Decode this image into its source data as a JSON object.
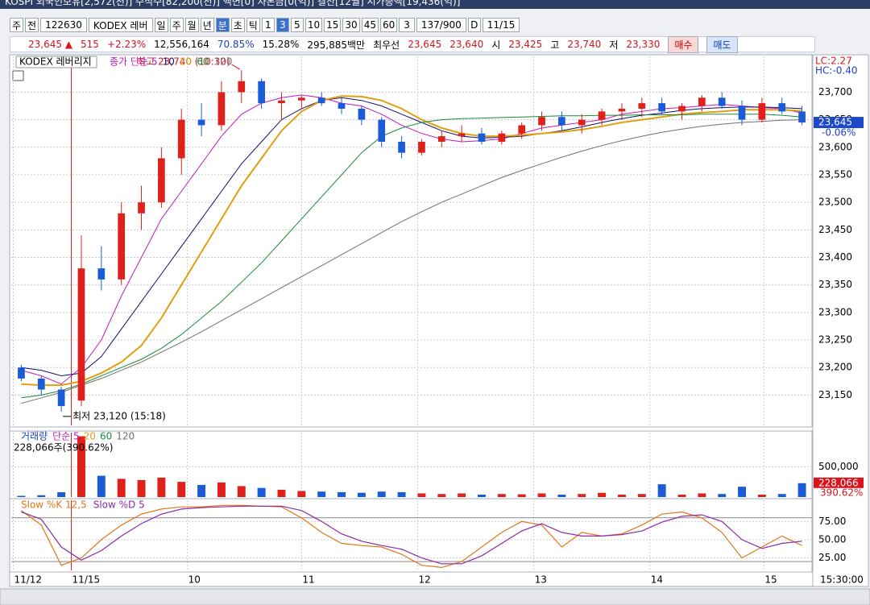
{
  "header": {
    "title": "KOSPI 외국인보유[2,572(천)] 수식수[82,200(천)] 액면[0] 자본금[0(억)] 결산[12월] 시가총액[19,436(억)]"
  },
  "toolbar": {
    "items": [
      {
        "text": "주"
      },
      {
        "text": "전"
      },
      {
        "text": "122630",
        "wide": true
      },
      {
        "text": "KODEX 레버",
        "wide": true
      },
      {
        "text": "일"
      },
      {
        "text": "주"
      },
      {
        "text": "월"
      },
      {
        "text": "년"
      },
      {
        "text": "분",
        "active": true
      },
      {
        "text": "초"
      },
      {
        "text": "틱"
      },
      {
        "text": "1"
      },
      {
        "text": "3",
        "active": true
      },
      {
        "text": "5"
      },
      {
        "text": "10"
      },
      {
        "text": "15"
      },
      {
        "text": "30"
      },
      {
        "text": "45"
      },
      {
        "text": "60"
      },
      {
        "text": "3",
        "wide": true
      },
      {
        "text": "137/900",
        "wide": true
      },
      {
        "text": "D"
      },
      {
        "text": "11/15",
        "wide": true
      }
    ]
  },
  "quote": {
    "items": [
      {
        "text": "23,645 ▲",
        "color": "#d8141c"
      },
      {
        "text": "515",
        "color": "#d8141c"
      },
      {
        "text": "+2.23%",
        "color": "#d8141c"
      },
      {
        "text": "12,556,164",
        "color": "#000000"
      },
      {
        "text": "70.85%",
        "color": "#1d3fc4"
      },
      {
        "text": "15.28%",
        "color": "#000000"
      },
      {
        "text": "295,885백만",
        "color": "#000000"
      },
      {
        "text": "최우선",
        "color": "#000000"
      },
      {
        "text": "23,645",
        "color": "#d8141c"
      },
      {
        "text": "23,640",
        "color": "#d8141c"
      },
      {
        "text": "시",
        "color": "#000000"
      },
      {
        "text": "23,425",
        "color": "#d8141c"
      },
      {
        "text": "고",
        "color": "#000000"
      },
      {
        "text": "23,740",
        "color": "#d8141c"
      },
      {
        "text": "저",
        "color": "#000000"
      },
      {
        "text": "23,330",
        "color": "#d8141c"
      }
    ],
    "buy": "매수",
    "sell": "매도"
  },
  "chart_data": [
    {
      "type": "candlestick",
      "title": "KODEX 레버리지",
      "ma_label": "종가 단순",
      "lc": "LC:2.27",
      "hc": "HC:-0.40",
      "xlim": [
        -0.5,
        39.5
      ],
      "ylim": [
        23095,
        23765
      ],
      "yticks": [
        {
          "value": 23150,
          "label": "23,150"
        },
        {
          "value": 23200,
          "label": "23,200"
        },
        {
          "value": 23250,
          "label": "23,250"
        },
        {
          "value": 23300,
          "label": "23,300"
        },
        {
          "value": 23350,
          "label": "23,350"
        },
        {
          "value": 23400,
          "label": "23,400"
        },
        {
          "value": 23450,
          "label": "23,450"
        },
        {
          "value": 23500,
          "label": "23,500"
        },
        {
          "value": 23550,
          "label": "23,550"
        },
        {
          "value": 23600,
          "label": "23,600"
        },
        {
          "value": 23650,
          "label": "23,650"
        },
        {
          "value": 23700,
          "label": "23,700"
        }
      ],
      "up_color": "#e0201b",
      "down_color": "#1a5bd8",
      "open": [
        23200,
        23180,
        23160,
        23140,
        23380,
        23360,
        23480,
        23500,
        23580,
        23650,
        23640,
        23700,
        23720,
        23680,
        23685,
        23690,
        23680,
        23670,
        23650,
        23610,
        23590,
        23610,
        23620,
        23625,
        23610,
        23625,
        23640,
        23655,
        23640,
        23650,
        23665,
        23670,
        23680,
        23665,
        23675,
        23690,
        23675,
        23650,
        23680,
        23665
      ],
      "high": [
        23205,
        23185,
        23165,
        23440,
        23420,
        23500,
        23530,
        23600,
        23670,
        23680,
        23720,
        23740,
        23725,
        23700,
        23695,
        23700,
        23690,
        23675,
        23655,
        23620,
        23615,
        23630,
        23640,
        23635,
        23630,
        23645,
        23665,
        23665,
        23660,
        23670,
        23680,
        23690,
        23690,
        23680,
        23695,
        23700,
        23685,
        23690,
        23690,
        23675
      ],
      "low": [
        23175,
        23150,
        23120,
        23130,
        23340,
        23350,
        23450,
        23490,
        23550,
        23620,
        23630,
        23680,
        23670,
        23650,
        23670,
        23675,
        23660,
        23640,
        23600,
        23580,
        23585,
        23600,
        23610,
        23605,
        23605,
        23615,
        23630,
        23630,
        23625,
        23640,
        23650,
        23655,
        23660,
        23650,
        23665,
        23670,
        23640,
        23645,
        23660,
        23640
      ],
      "close": [
        23180,
        23160,
        23130,
        23380,
        23360,
        23480,
        23500,
        23580,
        23650,
        23640,
        23700,
        23720,
        23680,
        23685,
        23690,
        23680,
        23670,
        23650,
        23610,
        23590,
        23610,
        23620,
        23625,
        23610,
        23625,
        23640,
        23655,
        23640,
        23650,
        23665,
        23670,
        23680,
        23665,
        23675,
        23690,
        23675,
        23650,
        23680,
        23665,
        23645
      ],
      "series": [
        {
          "name": "5",
          "color": "#c01cc0",
          "values": [
            23195,
            23185,
            23170,
            23200,
            23250,
            23330,
            23400,
            23470,
            23520,
            23570,
            23620,
            23660,
            23680,
            23690,
            23695,
            23690,
            23680,
            23675,
            23660,
            23640,
            23625,
            23615,
            23610,
            23612,
            23615,
            23625,
            23635,
            23640,
            23645,
            23650,
            23660,
            23665,
            23670,
            23672,
            23675,
            23678,
            23675,
            23672,
            23670,
            23662
          ]
        },
        {
          "name": "10",
          "color": "#101070",
          "values": [
            23200,
            23195,
            23185,
            23190,
            23220,
            23270,
            23320,
            23370,
            23420,
            23470,
            23520,
            23570,
            23610,
            23650,
            23670,
            23685,
            23690,
            23685,
            23675,
            23660,
            23645,
            23630,
            23620,
            23617,
            23618,
            23620,
            23625,
            23630,
            23637,
            23645,
            23652,
            23658,
            23662,
            23667,
            23670,
            23672,
            23673,
            23673,
            23672,
            23670
          ]
        },
        {
          "name": "20",
          "color": "#e0a010",
          "values": [
            23170,
            23168,
            23168,
            23175,
            23190,
            23210,
            23240,
            23290,
            23350,
            23410,
            23470,
            23530,
            23580,
            23630,
            23665,
            23685,
            23693,
            23692,
            23685,
            23670,
            23650,
            23635,
            23625,
            23620,
            23620,
            23622,
            23625,
            23628,
            23632,
            23638,
            23645,
            23650,
            23655,
            23660,
            23663,
            23665,
            23668,
            23668,
            23668,
            23666
          ]
        },
        {
          "name": "60",
          "color": "#1a8a3a",
          "values": [
            23145,
            23150,
            23158,
            23170,
            23185,
            23200,
            23215,
            23235,
            23260,
            23290,
            23320,
            23355,
            23390,
            23430,
            23470,
            23510,
            23550,
            23590,
            23620,
            23635,
            23645,
            23650,
            23652,
            23653,
            23654,
            23655,
            23656,
            23657,
            23657,
            23658,
            23658,
            23659,
            23659,
            23659,
            23660,
            23660,
            23660,
            23660,
            23658,
            23655
          ]
        },
        {
          "name": "120",
          "color": "#707070",
          "values": [
            23135,
            23145,
            23155,
            23168,
            23180,
            23195,
            23210,
            23228,
            23246,
            23265,
            23285,
            23305,
            23325,
            23345,
            23365,
            23385,
            23405,
            23425,
            23445,
            23465,
            23483,
            23500,
            23515,
            23530,
            23545,
            23558,
            23570,
            23582,
            23593,
            23603,
            23612,
            23620,
            23627,
            23633,
            23638,
            23642,
            23645,
            23647,
            23649,
            23650
          ]
        }
      ],
      "annotations": [
        {
          "text": "최고 23,740 (10:30)",
          "x": 11,
          "value": 23740,
          "color": "#d8141c"
        },
        {
          "text": "최저 23,120 (15:18)",
          "x": 2,
          "value": 23120,
          "color": "#000000"
        }
      ],
      "price_badge": {
        "value": 23645,
        "label": "23,645"
      },
      "change_badge": "-0.06%"
    },
    {
      "type": "bar",
      "title": "거래량",
      "legend": [
        {
          "text": "단순 5",
          "color": "#c01cc0"
        },
        {
          "text": "20",
          "color": "#e0a010"
        },
        {
          "text": "60",
          "color": "#1a8a3a"
        },
        {
          "text": "120",
          "color": "#707070"
        }
      ],
      "volume_label": "228,066주(390.62%)",
      "xlim": [
        -0.5,
        39.5
      ],
      "ylim": [
        0,
        1060000
      ],
      "yticks": [
        {
          "value": 500000,
          "label": "500,000"
        }
      ],
      "values": [
        20000,
        30000,
        80000,
        1000000,
        350000,
        300000,
        280000,
        320000,
        250000,
        200000,
        240000,
        180000,
        150000,
        120000,
        100000,
        90000,
        80000,
        70000,
        90000,
        80000,
        60000,
        50000,
        60000,
        40000,
        50000,
        45000,
        60000,
        40000,
        50000,
        70000,
        40000,
        50000,
        210000,
        40000,
        60000,
        50000,
        170000,
        40000,
        50000,
        228066
      ],
      "badge": {
        "value": 228066,
        "label": "228,066"
      },
      "ratio_badge": "390.62%"
    },
    {
      "type": "line",
      "xlim": [
        -0.5,
        39.5
      ],
      "ylim": [
        8,
        104
      ],
      "yticks": [
        {
          "value": 25,
          "label": "25.00"
        },
        {
          "value": 50,
          "label": "50.00"
        },
        {
          "value": 75,
          "label": "75.00"
        }
      ],
      "ref_lines": [
        20,
        80
      ],
      "xticks": [
        {
          "value": -0.4,
          "label": "11/12"
        },
        {
          "value": 2.5,
          "label": "11/15"
        },
        {
          "value": 8.3,
          "label": "10"
        },
        {
          "value": 14,
          "label": "11"
        },
        {
          "value": 19.8,
          "label": "12"
        },
        {
          "value": 25.6,
          "label": "13"
        },
        {
          "value": 31.4,
          "label": "14"
        },
        {
          "value": 37.1,
          "label": "15"
        }
      ],
      "time_label": "15:30:00",
      "series": [
        {
          "name": "Slow %K 12,5",
          "color": "#e07818",
          "values": [
            90,
            70,
            15,
            25,
            50,
            70,
            85,
            92,
            95,
            95,
            97,
            97,
            96,
            95,
            80,
            60,
            45,
            42,
            40,
            30,
            15,
            12,
            20,
            40,
            60,
            75,
            70,
            40,
            60,
            55,
            58,
            70,
            85,
            88,
            80,
            60,
            25,
            40,
            55,
            42
          ]
        },
        {
          "name": "Slow %D 5",
          "color": "#8a2aa8",
          "values": [
            88,
            78,
            40,
            22,
            35,
            55,
            72,
            85,
            92,
            94,
            95,
            96,
            96,
            96,
            90,
            75,
            58,
            48,
            42,
            37,
            25,
            17,
            17,
            28,
            45,
            62,
            72,
            60,
            55,
            55,
            57,
            62,
            74,
            82,
            84,
            75,
            50,
            38,
            45,
            48
          ]
        }
      ]
    }
  ]
}
